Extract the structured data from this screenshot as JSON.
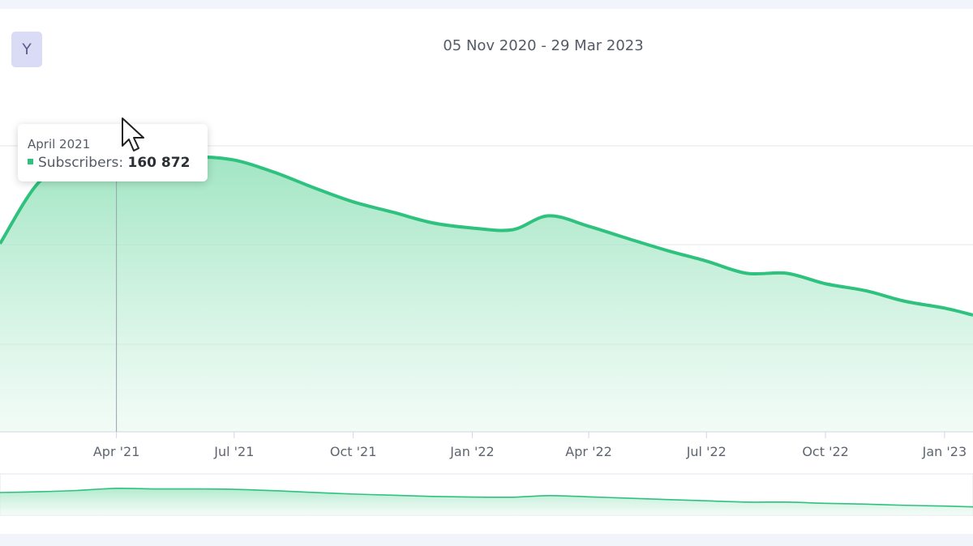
{
  "range_label": "05 Nov 2020 - 29 Mar 2023",
  "period_button_label": "Y",
  "tooltip": {
    "title": "April 2021",
    "series_label": "Subscribers:",
    "value": "160 872"
  },
  "colors": {
    "line": "#2ec27e",
    "fill": "#8ee0b8",
    "grid": "#e3e6ec",
    "button_bg": "#dadcf5"
  },
  "chart_data": {
    "type": "area",
    "x_tick_labels": [
      "Apr '21",
      "Jul '21",
      "Oct '21",
      "Jan '22",
      "Apr '22",
      "Jul '22",
      "Oct '22",
      "Jan '23"
    ],
    "x_range": [
      "2021-01-01",
      "2023-01-23"
    ],
    "ylim": [
      0,
      220000
    ],
    "grid": true,
    "legend": "none",
    "series": [
      {
        "name": "Subscribers",
        "x": [
          "2021-01-01",
          "2021-02-01",
          "2021-03-01",
          "2021-04-01",
          "2021-05-01",
          "2021-06-01",
          "2021-07-01",
          "2021-08-01",
          "2021-09-01",
          "2021-10-01",
          "2021-11-01",
          "2021-12-01",
          "2022-01-01",
          "2022-02-01",
          "2022-03-01",
          "2022-04-01",
          "2022-05-01",
          "2022-06-01",
          "2022-07-01",
          "2022-08-01",
          "2022-09-01",
          "2022-10-01",
          "2022-11-01",
          "2022-12-01",
          "2023-01-01",
          "2023-01-23"
        ],
        "y": [
          108000,
          144000,
          150000,
          160872,
          158000,
          158000,
          156000,
          149000,
          140000,
          132000,
          126000,
          120000,
          117000,
          116000,
          124000,
          118000,
          111000,
          104000,
          98000,
          91000,
          91000,
          85000,
          81000,
          75000,
          71000,
          67000
        ]
      }
    ],
    "navigator": true
  }
}
